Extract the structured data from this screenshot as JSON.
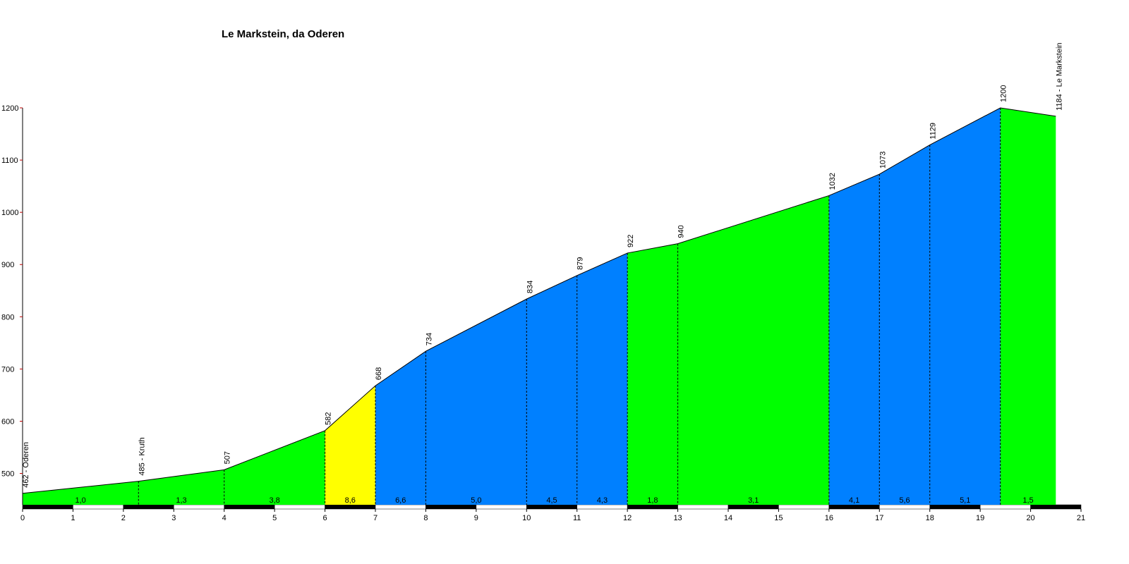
{
  "chart_data": {
    "type": "area",
    "title": "Le Markstein, da Oderen",
    "x": [
      0,
      2.3,
      4,
      6,
      7,
      8,
      10,
      11,
      12,
      13,
      16,
      17,
      18,
      19.4,
      20.5
    ],
    "values": [
      462,
      485,
      507,
      582,
      668,
      734,
      834,
      879,
      922,
      940,
      1032,
      1073,
      1129,
      1200,
      1184
    ],
    "value_labels": [
      "462 - Oderen",
      "485 - Kruth",
      "507",
      "582",
      "668",
      "734",
      "834",
      "879",
      "922",
      "940",
      "1032",
      "1073",
      "1129",
      "1200",
      "1184 - Le Markstein"
    ],
    "segment_labels": [
      "1,0",
      "1,3",
      "3,8",
      "8,6",
      "6,6",
      "5,0",
      "4,5",
      "4,3",
      "1,8",
      "3,1",
      "4,1",
      "5,6",
      "5,1",
      "1,5"
    ],
    "segment_colors": [
      "#00ff00",
      "#00ff00",
      "#00ff00",
      "#ffff00",
      "#0080ff",
      "#0080ff",
      "#0080ff",
      "#0080ff",
      "#00ff00",
      "#00ff00",
      "#0080ff",
      "#0080ff",
      "#0080ff",
      "#00ff00"
    ],
    "xlim": [
      0,
      21
    ],
    "xticks": [
      0,
      1,
      2,
      3,
      4,
      5,
      6,
      7,
      8,
      9,
      10,
      11,
      12,
      13,
      14,
      15,
      16,
      17,
      18,
      19,
      20,
      21
    ],
    "ylim": [
      440,
      1200
    ],
    "yticks": [
      500,
      600,
      700,
      800,
      900,
      1000,
      1100,
      1200
    ]
  }
}
